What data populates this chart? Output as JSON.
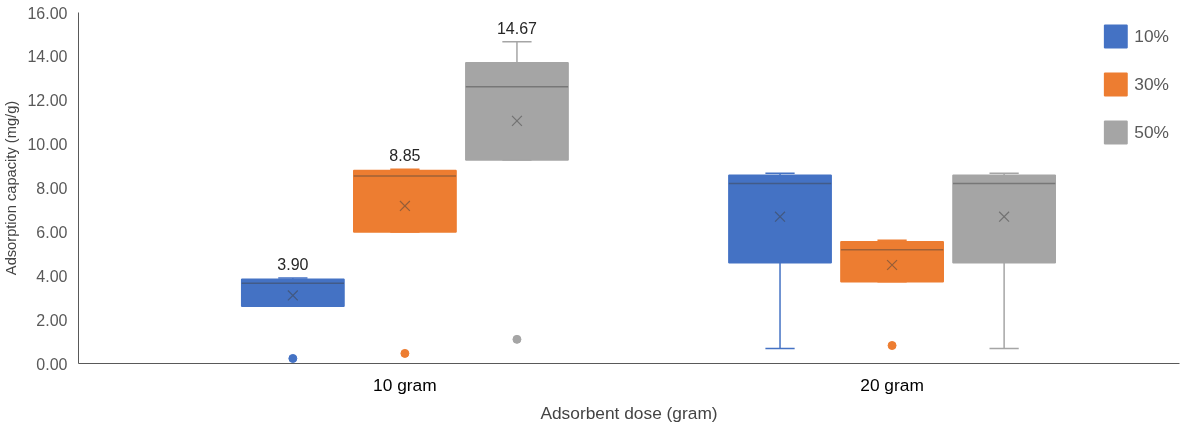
{
  "chart_data": {
    "type": "box",
    "xlabel": "Adsorbent dose (gram)",
    "ylabel": "Adsorption capacity (mg/g)",
    "categories": [
      "10 gram",
      "20 gram"
    ],
    "series": [
      {
        "name": "10%",
        "color": "#4472c4",
        "boxes": [
          {
            "low": 2.61,
            "q1": 2.61,
            "median": 3.66,
            "q3": 3.84,
            "high": 3.9,
            "mean": 3.1,
            "outliers": [
              0.23
            ]
          },
          {
            "low": 0.68,
            "q1": 4.59,
            "median": 8.2,
            "q3": 8.58,
            "high": 8.67,
            "mean": 6.69
          }
        ]
      },
      {
        "name": "30%",
        "color": "#ed7d31",
        "boxes": [
          {
            "low": 5.99,
            "q1": 5.99,
            "median": 8.55,
            "q3": 8.8,
            "high": 8.85,
            "mean": 7.18,
            "outliers": [
              0.46
            ]
          },
          {
            "low": 3.73,
            "q1": 3.73,
            "median": 5.18,
            "q3": 5.55,
            "high": 5.62,
            "mean": 4.49,
            "outliers": [
              0.82
            ]
          }
        ]
      },
      {
        "name": "50%",
        "color": "#a5a5a5",
        "boxes": [
          {
            "low": 9.28,
            "q1": 9.28,
            "median": 12.62,
            "q3": 13.71,
            "high": 14.67,
            "mean": 11.06,
            "outliers": [
              1.1
            ]
          },
          {
            "low": 0.68,
            "q1": 4.59,
            "median": 8.2,
            "q3": 8.58,
            "high": 8.67,
            "mean": 6.69
          }
        ]
      }
    ],
    "ylim": [
      0,
      16
    ],
    "yticks": [
      {
        "value": 0,
        "label": "0.00"
      },
      {
        "value": 2,
        "label": "2.00"
      },
      {
        "value": 4,
        "label": "4.00"
      },
      {
        "value": 6,
        "label": "6.00"
      },
      {
        "value": 8,
        "label": "8.00"
      },
      {
        "value": 10,
        "label": "10.00"
      },
      {
        "value": 12,
        "label": "12.00"
      },
      {
        "value": 14,
        "label": "14.00"
      },
      {
        "value": 16,
        "label": "16.00"
      }
    ],
    "grid": false,
    "legend": "top right",
    "annotations": [
      "3.90",
      "8.85",
      "14.67"
    ]
  }
}
